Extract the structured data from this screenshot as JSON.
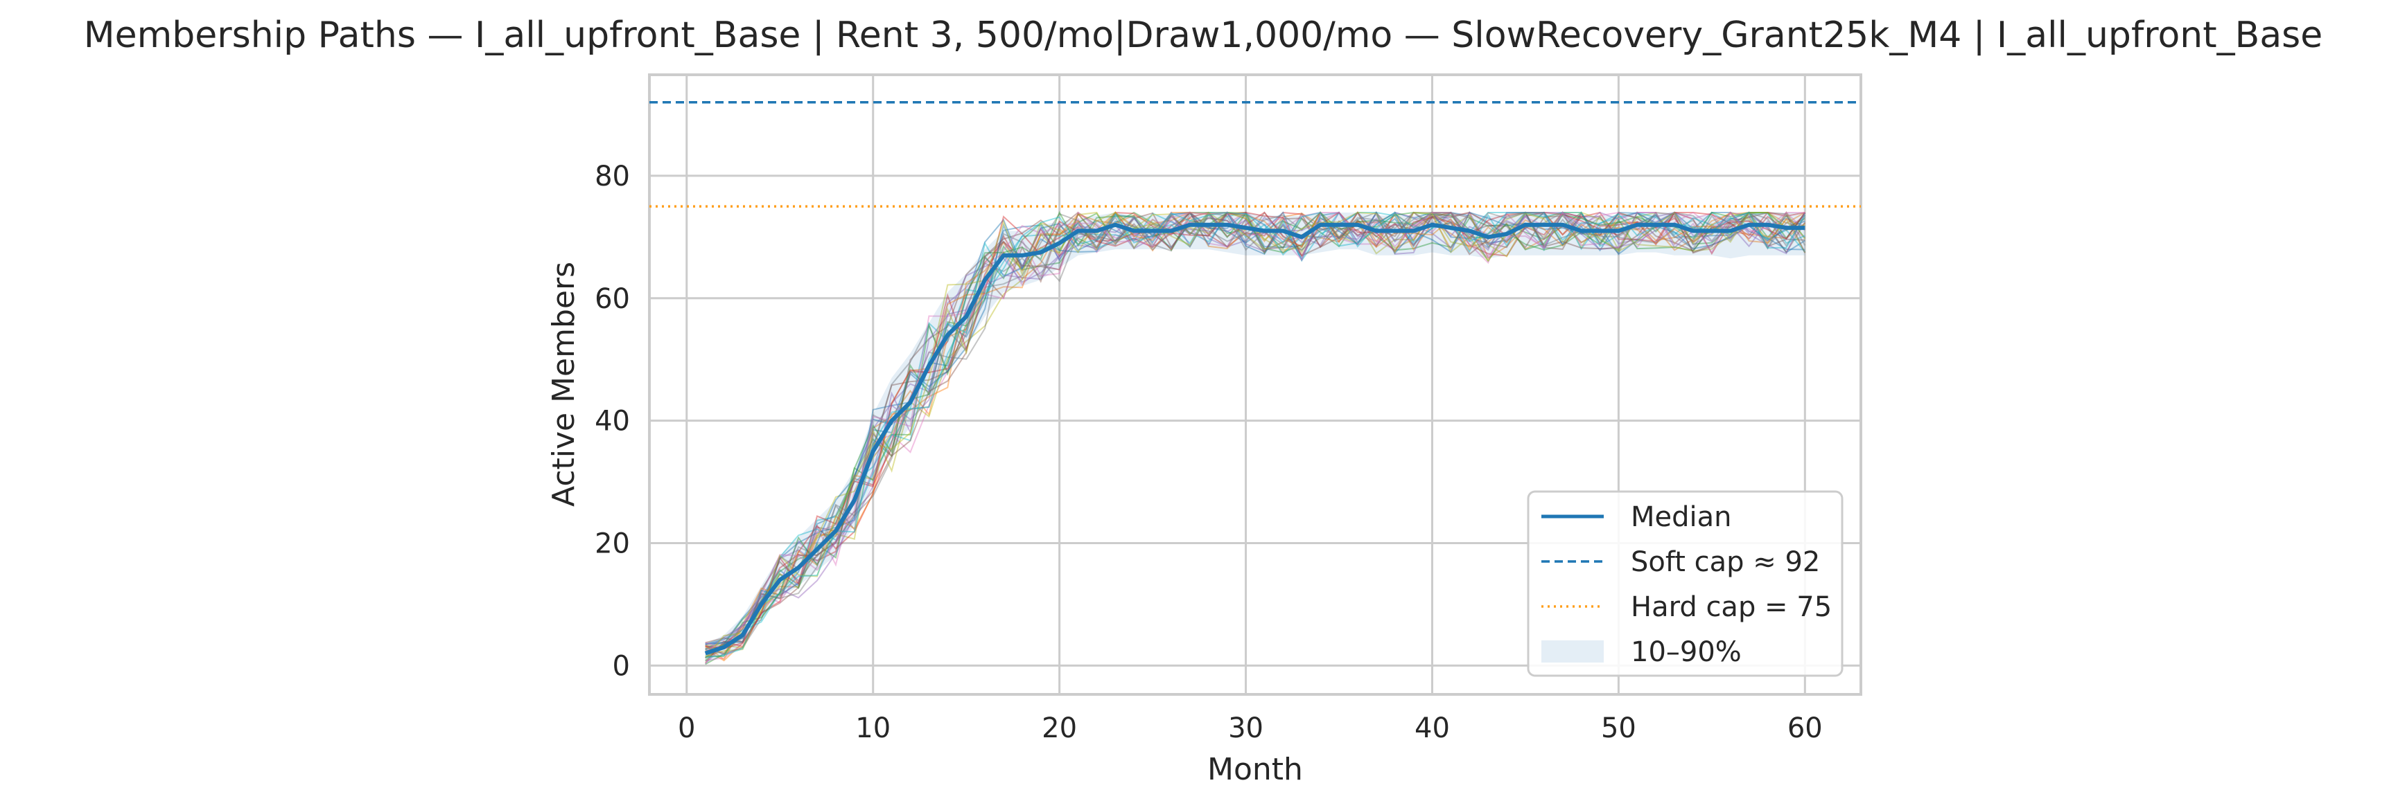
{
  "chart_data": {
    "type": "line",
    "title": "Membership Paths — I_all_upfront_Base | Rent $3,500/mo | Draw $1,000/mo — SlowRecovery_Grant25k_M4 | I_all_upfront_Base",
    "title_rendered": "Membership Paths — I_all_upfront_Base | Rent 3, 500/mo|Draw1,000/mo — SlowRecovery_Grant25k_M4 | I_all_upfront_Base",
    "xlabel": "Month",
    "ylabel": "Active Members",
    "xlim": [
      -2,
      63
    ],
    "ylim": [
      -4.7,
      96.5
    ],
    "x_ticks": [
      0,
      10,
      20,
      30,
      40,
      50,
      60
    ],
    "y_ticks": [
      0,
      20,
      40,
      60,
      80
    ],
    "grid": true,
    "legend_position": "lower-right",
    "x": [
      1,
      2,
      3,
      4,
      5,
      6,
      7,
      8,
      9,
      10,
      11,
      12,
      13,
      14,
      15,
      16,
      17,
      18,
      19,
      20,
      21,
      22,
      23,
      24,
      25,
      26,
      27,
      28,
      29,
      30,
      31,
      32,
      33,
      34,
      35,
      36,
      37,
      38,
      39,
      40,
      41,
      42,
      43,
      44,
      45,
      46,
      47,
      48,
      49,
      50,
      51,
      52,
      53,
      54,
      55,
      56,
      57,
      58,
      59,
      60
    ],
    "series": [
      {
        "name": "Median",
        "color": "#1f77b4",
        "values": [
          2,
          3,
          5,
          10,
          14,
          16,
          19,
          22,
          27,
          35,
          40,
          43,
          49,
          54,
          57,
          63,
          67,
          67,
          67.5,
          69,
          71,
          71,
          72,
          71,
          71,
          71,
          72,
          72,
          72,
          71.5,
          71,
          71,
          70,
          72,
          72,
          72,
          71,
          71,
          71,
          72,
          71.5,
          71,
          70,
          70.5,
          72,
          72,
          72,
          71,
          71,
          71,
          72,
          72,
          72,
          71,
          71,
          71,
          72,
          72,
          71.5,
          71.5
        ]
      }
    ],
    "band": {
      "name": "10–90%",
      "color": "#1f77b4",
      "lower": [
        0.5,
        1.5,
        3.5,
        8,
        11,
        13,
        15.5,
        18,
        23,
        30,
        35,
        39,
        44,
        48,
        52,
        57,
        61,
        62,
        63,
        65,
        67,
        67.5,
        68,
        68,
        68,
        68,
        68,
        68,
        67.5,
        67,
        67,
        67,
        67,
        67.5,
        68,
        68,
        67,
        67,
        67,
        67.5,
        67,
        67,
        66.5,
        67,
        67,
        67,
        67,
        67,
        67,
        67,
        67.5,
        67.5,
        67,
        67,
        67,
        66.5,
        67,
        67,
        67,
        67
      ],
      "upper": [
        3.5,
        5,
        8,
        13,
        18,
        21,
        24,
        27,
        32,
        41,
        47,
        51,
        56,
        61,
        64,
        68,
        71,
        71,
        72,
        72.5,
        73,
        73.5,
        74,
        73.5,
        73.5,
        73.5,
        74,
        74,
        74,
        74,
        73.5,
        73.5,
        73.5,
        74,
        74,
        74,
        73.5,
        73.5,
        73.5,
        74,
        74,
        73.5,
        73.5,
        73.5,
        74,
        74,
        74,
        73.5,
        73.5,
        73.5,
        74,
        74,
        74,
        73.5,
        73.5,
        73.5,
        74,
        74,
        74,
        74
      ]
    },
    "reference_lines": [
      {
        "name": "Soft cap ≈ 92",
        "y": 92,
        "color": "#1f77b4",
        "style": "dashed"
      },
      {
        "name": "Hard cap = 75",
        "y": 75,
        "color": "#ff9f1c",
        "style": "dotted"
      }
    ],
    "paths": {
      "count": 30,
      "note_colors": [
        "#1f77b4",
        "#ff7f0e",
        "#2ca02c",
        "#d62728",
        "#9467bd",
        "#8c564b",
        "#e377c2",
        "#7f7f7f",
        "#bcbd22",
        "#17becf"
      ]
    }
  }
}
